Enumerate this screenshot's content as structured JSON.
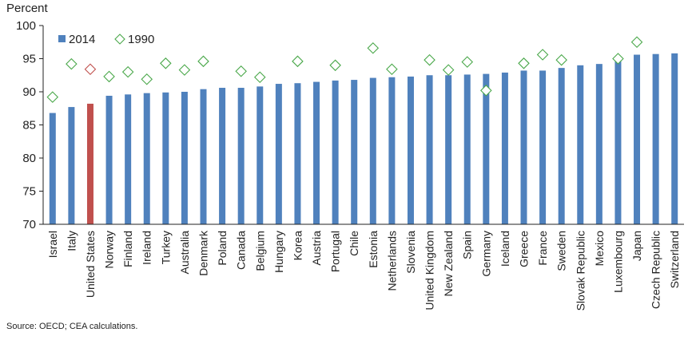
{
  "chart_data": {
    "type": "bar",
    "ylabel": "Percent",
    "ylim": [
      70,
      100
    ],
    "yticks": [
      70,
      75,
      80,
      85,
      90,
      95,
      100
    ],
    "legend_position": "top-left",
    "grid": false,
    "categories": [
      "Israel",
      "Italy",
      "United States",
      "Norway",
      "Finland",
      "Ireland",
      "Turkey",
      "Australia",
      "Denmark",
      "Poland",
      "Canada",
      "Belgium",
      "Hungary",
      "Korea",
      "Austria",
      "Portugal",
      "Chile",
      "Estonia",
      "Netherlands",
      "Slovenia",
      "United Kingdom",
      "New Zealand",
      "Spain",
      "Germany",
      "Iceland",
      "Greece",
      "France",
      "Sweden",
      "Slovak Republic",
      "Mexico",
      "Luxembourg",
      "Japan",
      "Czech Republic",
      "Switzerland"
    ],
    "highlight_category": "United States",
    "series": [
      {
        "name": "2014",
        "kind": "bar",
        "color": "#4f81bd",
        "highlight_color": "#c0504d",
        "values": [
          86.8,
          87.7,
          88.2,
          89.4,
          89.6,
          89.8,
          89.9,
          90.0,
          90.4,
          90.6,
          90.6,
          90.8,
          91.2,
          91.3,
          91.5,
          91.7,
          91.8,
          92.1,
          92.2,
          92.3,
          92.5,
          92.5,
          92.6,
          92.7,
          92.9,
          93.2,
          93.2,
          93.6,
          94.0,
          94.2,
          94.8,
          95.6,
          95.7,
          95.8
        ]
      },
      {
        "name": "1990",
        "kind": "diamond",
        "color": "#4aa84a",
        "highlight_color": "#c0504d",
        "values": [
          89.2,
          94.2,
          93.4,
          92.3,
          93.0,
          91.9,
          94.3,
          93.3,
          94.6,
          null,
          93.1,
          92.2,
          null,
          94.6,
          null,
          94.0,
          null,
          96.6,
          93.4,
          null,
          94.8,
          93.3,
          94.5,
          90.2,
          null,
          94.3,
          95.6,
          94.8,
          null,
          null,
          95.0,
          97.5,
          null,
          null
        ]
      }
    ]
  },
  "source": "Source: OECD; CEA calculations."
}
